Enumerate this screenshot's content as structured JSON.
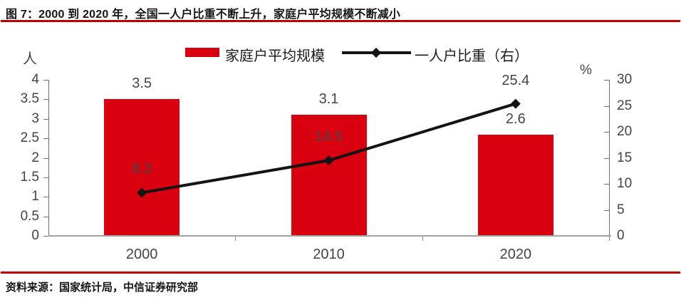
{
  "title": "图 7：2000 到 2020 年，全国一人户比重不断上升，家庭户平均规模不断减小",
  "source": "资料来源：国家统计局，中信证券研究部",
  "colors": {
    "bar": "#d9000f",
    "line": "#141414",
    "rule": "#c00000",
    "axis": "#6f6f6f",
    "baseline": "#a3a3a3",
    "value_label": "#43464a",
    "tick_label": "#404347"
  },
  "legend": {
    "bar_label": "家庭户平均规模",
    "line_label": "一人户比重（右）"
  },
  "left_axis": {
    "unit": "人",
    "min": 0,
    "max": 4,
    "step": 0.5
  },
  "right_axis": {
    "unit": "%",
    "min": 0,
    "max": 30,
    "step": 5
  },
  "chart_data": {
    "type": "bar+line",
    "title": "图 7：2000 到 2020 年，全国一人户比重不断上升，家庭户平均规模不断减小",
    "categories": [
      "2000",
      "2010",
      "2020"
    ],
    "series": [
      {
        "name": "家庭户平均规模",
        "type": "bar",
        "axis": "left",
        "unit": "人",
        "values": [
          3.5,
          3.1,
          2.6
        ],
        "color": "#d9000f"
      },
      {
        "name": "一人户比重（右）",
        "type": "line",
        "axis": "right",
        "unit": "%",
        "values": [
          8.3,
          14.5,
          25.4
        ],
        "color": "#141414",
        "marker": "diamond"
      }
    ],
    "left_ylim": [
      0,
      4
    ],
    "right_ylim": [
      0,
      30
    ],
    "left_ticks": [
      "4",
      "3.5",
      "3",
      "2.5",
      "2",
      "1.5",
      "1",
      "0.5",
      "0"
    ],
    "right_ticks": [
      "30",
      "25",
      "20",
      "15",
      "10",
      "5",
      "0"
    ],
    "grid": false,
    "legend_position": "top-center",
    "data_labels": true
  }
}
